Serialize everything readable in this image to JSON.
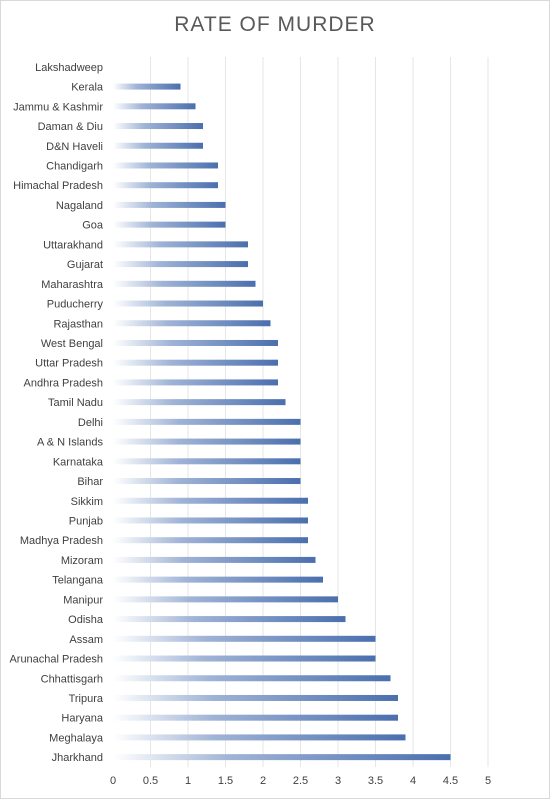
{
  "chart_data": {
    "type": "bar",
    "orientation": "horizontal",
    "title": "RATE OF MURDER",
    "xlabel": "",
    "ylabel": "",
    "xlim": [
      0,
      5
    ],
    "x_ticks": [
      0,
      0.5,
      1,
      1.5,
      2,
      2.5,
      3,
      3.5,
      4,
      4.5,
      5
    ],
    "x_tick_labels": [
      "0",
      "0.5",
      "1",
      "1.5",
      "2",
      "2.5",
      "3",
      "3.5",
      "4",
      "4.5",
      "5"
    ],
    "grid": "vertical",
    "bar_color": "#4f73ae",
    "categories": [
      "Lakshadweep",
      "Kerala",
      "Jammu & Kashmir",
      "Daman & Diu",
      "D&N Haveli",
      "Chandigarh",
      "Himachal Pradesh",
      "Nagaland",
      "Goa",
      "Uttarakhand",
      "Gujarat",
      "Maharashtra",
      "Puducherry",
      "Rajasthan",
      "West Bengal",
      "Uttar Pradesh",
      "Andhra Pradesh",
      "Tamil Nadu",
      "Delhi",
      "A & N Islands",
      "Karnataka",
      "Bihar",
      "Sikkim",
      "Punjab",
      "Madhya Pradesh",
      "Mizoram",
      "Telangana",
      "Manipur",
      "Odisha",
      "Assam",
      "Arunachal Pradesh",
      "Chhattisgarh",
      "Tripura",
      "Haryana",
      "Meghalaya",
      "Jharkhand"
    ],
    "values": [
      0,
      0.9,
      1.1,
      1.2,
      1.2,
      1.4,
      1.4,
      1.5,
      1.5,
      1.8,
      1.8,
      1.9,
      2.0,
      2.1,
      2.2,
      2.2,
      2.2,
      2.3,
      2.5,
      2.5,
      2.5,
      2.5,
      2.6,
      2.6,
      2.6,
      2.7,
      2.8,
      3.0,
      3.1,
      3.5,
      3.5,
      3.7,
      3.8,
      3.8,
      3.9,
      4.5
    ]
  }
}
